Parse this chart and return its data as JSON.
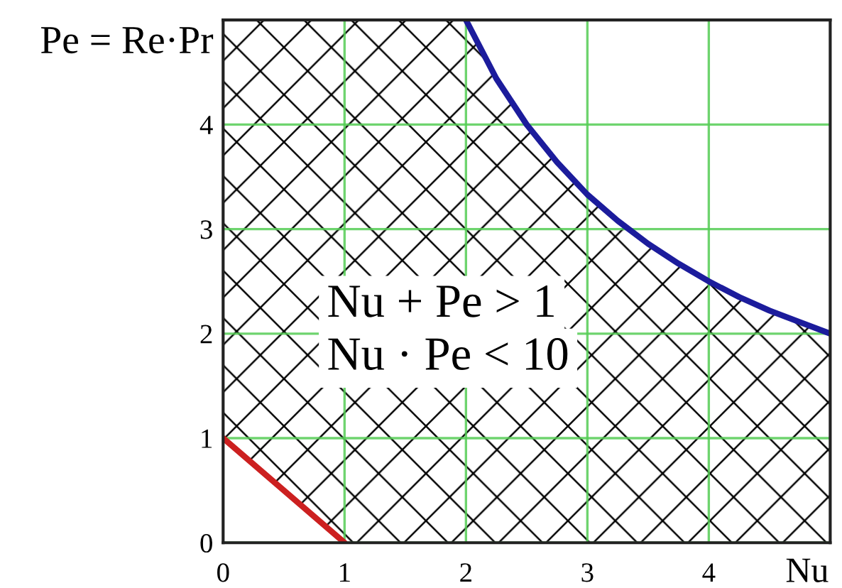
{
  "chart_data": {
    "type": "line",
    "xlabel": "Nu",
    "ylabel": "Pe = Re·Pr",
    "annotations": [
      "Nu + Pe > 1",
      "Nu · Pe < 10"
    ],
    "series": [
      {
        "color": "#cc2020",
        "x": [
          0,
          1
        ],
        "values": [
          1,
          0
        ]
      },
      {
        "color": "#1c1c9c",
        "x": [
          0,
          1,
          2,
          2.25,
          2.5,
          2.75,
          3,
          3.25,
          3.5,
          3.75,
          4,
          4.25,
          4.5,
          4.75,
          5
        ],
        "values": [
          null,
          null,
          5,
          4.44,
          4,
          3.64,
          3.33,
          3.08,
          2.86,
          2.67,
          2.5,
          2.35,
          2.22,
          2.11,
          2
        ],
        "lower": [
          1,
          0,
          0,
          0,
          0,
          0,
          0,
          0,
          0,
          0,
          0,
          0,
          0,
          0,
          0
        ],
        "upper": [
          5,
          5,
          5,
          4.44,
          4,
          3.64,
          3.33,
          3.08,
          2.86,
          2.67,
          2.5,
          2.35,
          2.22,
          2.11,
          2
        ]
      }
    ],
    "xlim": [
      0,
      5
    ],
    "ylim": [
      0,
      5
    ],
    "xticks": [
      0,
      1,
      2,
      3,
      4
    ],
    "yticks": [
      0,
      1,
      2,
      3,
      4
    ],
    "grid": true,
    "line_style": "solid"
  }
}
